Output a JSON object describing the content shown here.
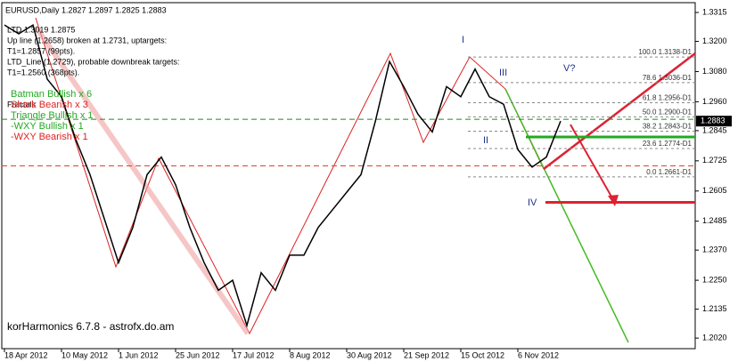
{
  "chart_data": {
    "type": "line",
    "title": "EURUSD,Daily  1.2827 1.2897 1.2825 1.2883",
    "watermark": "korHarmonics 6.7.8 - astrofx.do.am",
    "info_lines": [
      "LTD 1.3019  1.2875",
      "Up line (1.2658) broken at 1.2731, uptargets:",
      "T1=1.2857 (99pts).",
      "LTD_Line (1.2729), probable downbreak targets:",
      "T1=1.2560 (368pts).",
      "Fractals"
    ],
    "pattern_lines": [
      {
        "text": "Batman Bullish x 6",
        "color": "#22aa22"
      },
      {
        "text": "Shark Bearish x 3",
        "color": "#dd2222"
      },
      {
        "text": "Triangle Bullish x 1",
        "color": "#22aa22"
      },
      {
        "text": "-WXY Bullish x 1",
        "color": "#22aa22"
      },
      {
        "text": "-WXY Bearish x 1",
        "color": "#dd2222"
      }
    ],
    "wave_labels": [
      "I",
      "II",
      "III",
      "IV",
      "V?"
    ],
    "categories": [
      "18 Apr 2012",
      null,
      null,
      null,
      "10 May 2012",
      null,
      null,
      null,
      "1 Jun 2012",
      null,
      null,
      null,
      "25 Jun 2012",
      null,
      null,
      null,
      "17 Jul 2012",
      null,
      null,
      null,
      "8 Aug 2012",
      null,
      null,
      null,
      "30 Aug 2012",
      null,
      null,
      null,
      "21 Sep 2012",
      null,
      null,
      null,
      "15 Oct 2012",
      null,
      null,
      null,
      "6 Nov 2012",
      null,
      null,
      null
    ],
    "series": [
      {
        "name": "EURUSD",
        "color": "#000000",
        "values": [
          1.3265,
          1.323,
          1.3265,
          1.305,
          1.298,
          1.281,
          1.267,
          1.2495,
          1.232,
          1.246,
          1.267,
          1.274,
          1.263,
          1.246,
          1.232,
          1.221,
          1.225,
          1.207,
          1.228,
          1.221,
          1.235,
          1.235,
          1.246,
          1.253,
          1.26,
          1.267,
          1.288,
          1.312,
          1.302,
          1.291,
          1.284,
          1.302,
          1.298,
          1.309,
          1.298,
          1.295,
          1.277,
          1.27,
          1.274,
          1.2883
        ]
      }
    ],
    "last_price": {
      "value": 1.2883,
      "label": "1.2883"
    },
    "ylim": [
      1.1978,
      1.3354
    ],
    "yticks": [
      {
        "value": 1.3315,
        "label": "1.3315"
      },
      {
        "value": 1.32,
        "label": "1.3200"
      },
      {
        "value": 1.308,
        "label": "1.3080"
      },
      {
        "value": 1.296,
        "label": "1.2960"
      },
      {
        "value": 1.2845,
        "label": "1.2845"
      },
      {
        "value": 1.2725,
        "label": "1.2725"
      },
      {
        "value": 1.2605,
        "label": "1.2605"
      },
      {
        "value": 1.2485,
        "label": "1.2485"
      },
      {
        "value": 1.237,
        "label": "1.2370"
      },
      {
        "value": 1.225,
        "label": "1.2250"
      },
      {
        "value": 1.2135,
        "label": "1.2135"
      },
      {
        "value": 1.202,
        "label": "1.2020"
      }
    ],
    "fib_levels": [
      {
        "value": 1.3138,
        "label": "100.0 1.3138-D1"
      },
      {
        "value": 1.3036,
        "label": "78.6 1.3036-D1"
      },
      {
        "value": 1.2956,
        "label": "61.8 1.2956-D1"
      },
      {
        "value": 1.29,
        "label": "50.0 1.2900-D1"
      },
      {
        "value": 1.2843,
        "label": "38.2 1.2843-D1"
      },
      {
        "value": 1.2774,
        "label": "23.6 1.2774-D1"
      },
      {
        "value": 1.2661,
        "label": "0.0 1.2661-D1"
      }
    ],
    "lines": [
      {
        "value": 1.289,
        "color": "#228822",
        "style": "dashed"
      },
      {
        "value": 1.2705,
        "color": "#dd4422",
        "style": "dashed"
      },
      {
        "value": 1.282,
        "color": "#22aa22",
        "style": "solid"
      },
      {
        "value": 1.256,
        "color": "#dd2233",
        "style": "solid"
      }
    ]
  }
}
